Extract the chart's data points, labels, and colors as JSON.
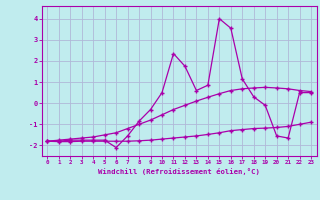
{
  "xlabel": "Windchill (Refroidissement éolien,°C)",
  "xlim": [
    -0.5,
    23.5
  ],
  "ylim": [
    -2.5,
    4.6
  ],
  "xtick_vals": [
    0,
    1,
    2,
    3,
    4,
    5,
    6,
    7,
    8,
    9,
    10,
    11,
    12,
    13,
    14,
    15,
    16,
    17,
    18,
    19,
    20,
    21,
    22,
    23
  ],
  "xtick_labels": [
    "0",
    "1",
    "2",
    "3",
    "4",
    "5",
    "6",
    "7",
    "8",
    "9",
    "10",
    "11",
    "12",
    "13",
    "14",
    "15",
    "16",
    "17",
    "18",
    "19",
    "20",
    "21",
    "22",
    "23"
  ],
  "ytick_vals": [
    -2,
    -1,
    0,
    1,
    2,
    3,
    4
  ],
  "ytick_labels": [
    "-2",
    "-1",
    "0",
    "1",
    "2",
    "3",
    "4"
  ],
  "bg_color": "#c0ecee",
  "grid_color": "#b0b8d8",
  "line_color": "#aa00aa",
  "line1_x": [
    0,
    1,
    2,
    3,
    4,
    5,
    6,
    7,
    8,
    9,
    10,
    11,
    12,
    13,
    14,
    15,
    16,
    17,
    18,
    19,
    20,
    21,
    22,
    23
  ],
  "line1_y": [
    -1.8,
    -1.8,
    -1.75,
    -1.75,
    -1.75,
    -1.75,
    -2.1,
    -1.55,
    -0.85,
    -0.3,
    0.5,
    2.35,
    1.75,
    0.6,
    0.85,
    4.0,
    3.55,
    1.15,
    0.3,
    -0.1,
    -1.55,
    -1.65,
    0.5,
    0.5
  ],
  "line2_x": [
    0,
    1,
    2,
    3,
    4,
    5,
    6,
    7,
    8,
    9,
    10,
    11,
    12,
    13,
    14,
    15,
    16,
    17,
    18,
    19,
    20,
    21,
    22,
    23
  ],
  "line2_y": [
    -1.8,
    -1.75,
    -1.7,
    -1.65,
    -1.6,
    -1.5,
    -1.4,
    -1.2,
    -1.0,
    -0.8,
    -0.55,
    -0.3,
    -0.1,
    0.1,
    0.28,
    0.45,
    0.6,
    0.68,
    0.72,
    0.75,
    0.72,
    0.68,
    0.6,
    0.55
  ],
  "line3_x": [
    0,
    1,
    2,
    3,
    4,
    5,
    6,
    7,
    8,
    9,
    10,
    11,
    12,
    13,
    14,
    15,
    16,
    17,
    18,
    19,
    20,
    21,
    22,
    23
  ],
  "line3_y": [
    -1.8,
    -1.82,
    -1.82,
    -1.8,
    -1.8,
    -1.8,
    -1.8,
    -1.8,
    -1.78,
    -1.75,
    -1.7,
    -1.65,
    -1.6,
    -1.55,
    -1.48,
    -1.4,
    -1.3,
    -1.25,
    -1.2,
    -1.18,
    -1.15,
    -1.1,
    -1.0,
    -0.9
  ]
}
